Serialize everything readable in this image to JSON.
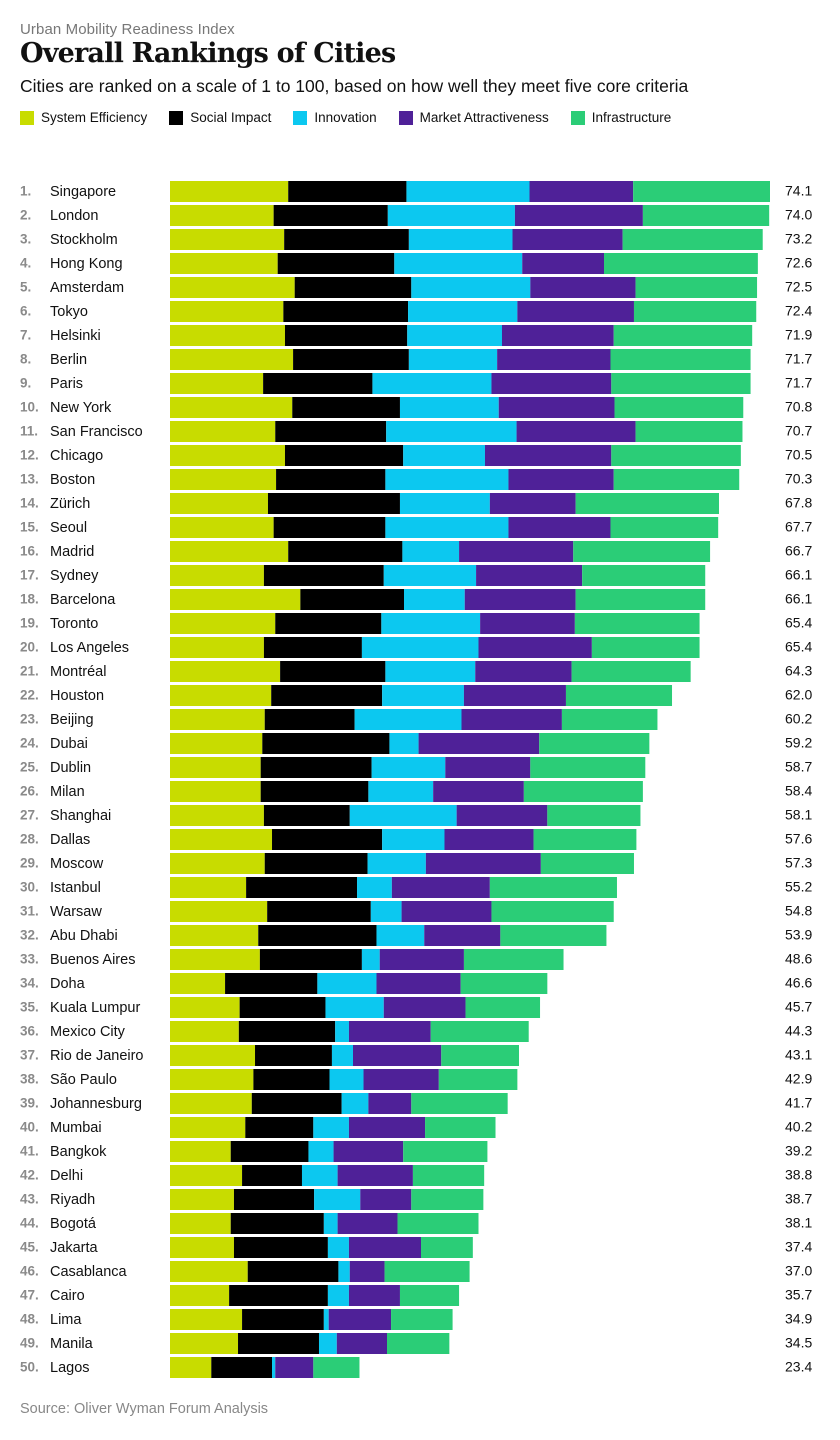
{
  "header": {
    "kicker": "Urban Mobility Readiness Index",
    "title": "Overall Rankings of Cities",
    "subtitle": "Cities are ranked on a scale of 1 to 100, based on how well they meet five core criteria"
  },
  "footer": {
    "source": "Source: Oliver Wyman Forum Analysis"
  },
  "chart_data": {
    "type": "bar",
    "orientation": "horizontal",
    "stacked": true,
    "title": "Overall Rankings of Cities",
    "subtitle": "Cities are ranked on a scale of 1 to 100, based on how well they meet five core criteria",
    "xlabel": "",
    "ylabel": "",
    "xlim": [
      0,
      74.1
    ],
    "grid": false,
    "legend_position": "top-left",
    "series": [
      {
        "name": "System Efficiency",
        "color": "#c8dc00"
      },
      {
        "name": "Social Impact",
        "color": "#000000"
      },
      {
        "name": "Innovation",
        "color": "#0cc8f0"
      },
      {
        "name": "Market Attractiveness",
        "color": "#4f2198"
      },
      {
        "name": "Infrastructure",
        "color": "#2bcd77"
      }
    ],
    "rows": [
      {
        "rank": "1.",
        "city": "Singapore",
        "total": "74.1",
        "values": [
          14.6,
          14.6,
          15.2,
          12.8,
          16.9
        ]
      },
      {
        "rank": "2.",
        "city": "London",
        "total": "74.0",
        "values": [
          12.8,
          14.1,
          15.7,
          15.8,
          15.6
        ]
      },
      {
        "rank": "3.",
        "city": "Stockholm",
        "total": "73.2",
        "values": [
          14.1,
          15.4,
          12.8,
          13.6,
          17.3
        ]
      },
      {
        "rank": "4.",
        "city": "Hong Kong",
        "total": "72.6",
        "values": [
          13.3,
          14.4,
          15.8,
          10.1,
          19.0
        ]
      },
      {
        "rank": "5.",
        "city": "Amsterdam",
        "total": "72.5",
        "values": [
          15.4,
          14.4,
          14.7,
          13.0,
          15.0
        ]
      },
      {
        "rank": "6.",
        "city": "Tokyo",
        "total": "72.4",
        "values": [
          14.0,
          15.4,
          13.5,
          14.4,
          15.1
        ]
      },
      {
        "rank": "7.",
        "city": "Helsinki",
        "total": "71.9",
        "values": [
          14.2,
          15.1,
          11.7,
          13.8,
          17.1
        ]
      },
      {
        "rank": "8.",
        "city": "Berlin",
        "total": "71.7",
        "values": [
          15.2,
          14.3,
          10.9,
          14.0,
          17.3
        ]
      },
      {
        "rank": "9.",
        "city": "Paris",
        "total": "71.7",
        "values": [
          11.5,
          13.5,
          14.7,
          14.8,
          17.2
        ]
      },
      {
        "rank": "10.",
        "city": "New York",
        "total": "70.8",
        "values": [
          15.1,
          13.3,
          12.2,
          14.3,
          15.9
        ]
      },
      {
        "rank": "11.",
        "city": "San Francisco",
        "total": "70.7",
        "values": [
          13.0,
          13.7,
          16.1,
          14.7,
          13.2
        ]
      },
      {
        "rank": "12.",
        "city": "Chicago",
        "total": "70.5",
        "values": [
          14.2,
          14.6,
          10.1,
          15.6,
          16.0
        ]
      },
      {
        "rank": "13.",
        "city": "Boston",
        "total": "70.3",
        "values": [
          13.1,
          13.5,
          15.2,
          13.0,
          15.5
        ]
      },
      {
        "rank": "14.",
        "city": "Zürich",
        "total": "67.8",
        "values": [
          12.1,
          16.3,
          11.1,
          10.6,
          17.7
        ]
      },
      {
        "rank": "15.",
        "city": "Seoul",
        "total": "67.7",
        "values": [
          12.8,
          13.8,
          15.2,
          12.6,
          13.3
        ]
      },
      {
        "rank": "16.",
        "city": "Madrid",
        "total": "66.7",
        "values": [
          14.6,
          14.1,
          7.0,
          14.1,
          16.9
        ]
      },
      {
        "rank": "17.",
        "city": "Sydney",
        "total": "66.1",
        "values": [
          11.6,
          14.8,
          11.4,
          13.1,
          15.2
        ]
      },
      {
        "rank": "18.",
        "city": "Barcelona",
        "total": "66.1",
        "values": [
          16.1,
          12.8,
          7.5,
          13.7,
          16.0
        ]
      },
      {
        "rank": "19.",
        "city": "Toronto",
        "total": "65.4",
        "values": [
          13.0,
          13.1,
          12.2,
          11.7,
          15.4
        ]
      },
      {
        "rank": "20.",
        "city": "Los Angeles",
        "total": "65.4",
        "values": [
          11.6,
          12.1,
          14.4,
          14.0,
          13.3
        ]
      },
      {
        "rank": "21.",
        "city": "Montréal",
        "total": "64.3",
        "values": [
          13.6,
          13.0,
          11.1,
          11.9,
          14.7
        ]
      },
      {
        "rank": "22.",
        "city": "Houston",
        "total": "62.0",
        "values": [
          12.5,
          13.7,
          10.1,
          12.6,
          13.1
        ]
      },
      {
        "rank": "23.",
        "city": "Beijing",
        "total": "60.2",
        "values": [
          11.7,
          11.1,
          13.2,
          12.4,
          11.8
        ]
      },
      {
        "rank": "24.",
        "city": "Dubai",
        "total": "59.2",
        "values": [
          11.4,
          15.7,
          3.6,
          14.9,
          13.6
        ]
      },
      {
        "rank": "25.",
        "city": "Dublin",
        "total": "58.7",
        "values": [
          11.2,
          13.7,
          9.1,
          10.5,
          14.2
        ]
      },
      {
        "rank": "26.",
        "city": "Milan",
        "total": "58.4",
        "values": [
          11.2,
          13.3,
          8.0,
          11.2,
          14.7
        ]
      },
      {
        "rank": "27.",
        "city": "Shanghai",
        "total": "58.1",
        "values": [
          11.6,
          10.6,
          13.2,
          11.2,
          11.5
        ]
      },
      {
        "rank": "28.",
        "city": "Dallas",
        "total": "57.6",
        "values": [
          12.6,
          13.6,
          7.7,
          11.0,
          12.7
        ]
      },
      {
        "rank": "29.",
        "city": "Moscow",
        "total": "57.3",
        "values": [
          11.7,
          12.7,
          7.2,
          14.2,
          11.5
        ]
      },
      {
        "rank": "30.",
        "city": "Istanbul",
        "total": "55.2",
        "values": [
          9.4,
          13.7,
          4.3,
          12.1,
          15.7
        ]
      },
      {
        "rank": "31.",
        "city": "Warsaw",
        "total": "54.8",
        "values": [
          12.0,
          12.8,
          3.8,
          11.1,
          15.1
        ]
      },
      {
        "rank": "32.",
        "city": "Abu Dhabi",
        "total": "53.9",
        "values": [
          10.9,
          14.6,
          5.9,
          9.4,
          13.1
        ]
      },
      {
        "rank": "33.",
        "city": "Buenos Aires",
        "total": "48.6",
        "values": [
          11.1,
          12.6,
          2.2,
          10.4,
          12.3
        ]
      },
      {
        "rank": "34.",
        "city": "Doha",
        "total": "46.6",
        "values": [
          6.8,
          11.4,
          7.3,
          10.4,
          10.7
        ]
      },
      {
        "rank": "35.",
        "city": "Kuala Lumpur",
        "total": "45.7",
        "values": [
          8.6,
          10.6,
          7.2,
          10.1,
          9.2
        ]
      },
      {
        "rank": "36.",
        "city": "Mexico City",
        "total": "44.3",
        "values": [
          8.5,
          11.9,
          1.7,
          10.1,
          12.1
        ]
      },
      {
        "rank": "37.",
        "city": "Rio de Janeiro",
        "total": "43.1",
        "values": [
          10.5,
          9.5,
          2.6,
          10.9,
          9.6
        ]
      },
      {
        "rank": "38.",
        "city": "São Paulo",
        "total": "42.9",
        "values": [
          10.3,
          9.4,
          4.2,
          9.3,
          9.7
        ]
      },
      {
        "rank": "39.",
        "city": "Johannesburg",
        "total": "41.7",
        "values": [
          10.1,
          11.1,
          3.3,
          5.3,
          11.9
        ]
      },
      {
        "rank": "40.",
        "city": "Mumbai",
        "total": "40.2",
        "values": [
          9.3,
          8.4,
          4.4,
          9.4,
          8.7
        ]
      },
      {
        "rank": "41.",
        "city": "Bangkok",
        "total": "39.2",
        "values": [
          7.5,
          9.6,
          3.1,
          8.6,
          10.4
        ]
      },
      {
        "rank": "42.",
        "city": "Delhi",
        "total": "38.8",
        "values": [
          8.9,
          7.4,
          4.4,
          9.3,
          8.8
        ]
      },
      {
        "rank": "43.",
        "city": "Riyadh",
        "total": "38.7",
        "values": [
          7.9,
          9.9,
          5.7,
          6.3,
          8.9
        ]
      },
      {
        "rank": "44.",
        "city": "Bogotá",
        "total": "38.1",
        "values": [
          7.5,
          11.5,
          1.7,
          7.4,
          10.0
        ]
      },
      {
        "rank": "45.",
        "city": "Jakarta",
        "total": "37.4",
        "values": [
          7.9,
          11.6,
          2.6,
          8.9,
          6.4
        ]
      },
      {
        "rank": "46.",
        "city": "Casablanca",
        "total": "37.0",
        "values": [
          9.6,
          11.2,
          1.4,
          4.3,
          10.5
        ]
      },
      {
        "rank": "47.",
        "city": "Cairo",
        "total": "35.7",
        "values": [
          7.3,
          12.2,
          2.6,
          6.3,
          7.3
        ]
      },
      {
        "rank": "48.",
        "city": "Lima",
        "total": "34.9",
        "values": [
          8.9,
          10.1,
          0.6,
          7.7,
          7.6
        ]
      },
      {
        "rank": "49.",
        "city": "Manila",
        "total": "34.5",
        "values": [
          8.4,
          10.0,
          2.2,
          6.2,
          7.7
        ]
      },
      {
        "rank": "50.",
        "city": "Lagos",
        "total": "23.4",
        "values": [
          5.1,
          7.5,
          0.4,
          4.7,
          5.7
        ]
      }
    ]
  }
}
